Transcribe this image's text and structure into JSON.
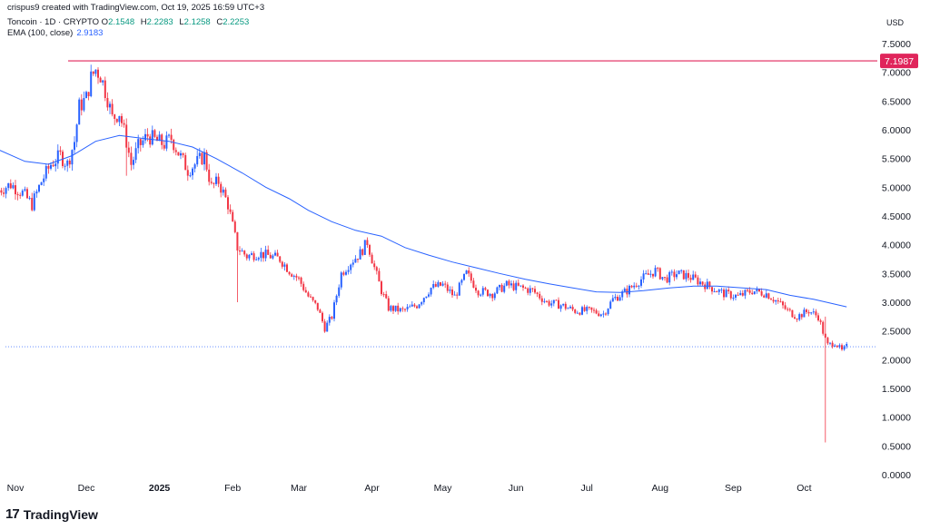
{
  "header": {
    "author_line": "crispus9 created with TradingView.com, Oct 19, 2025 16:59 UTC+3",
    "symbol": "Toncoin · 1D · CRYPTO",
    "ohlc": [
      {
        "k": "O",
        "v": "2.1548"
      },
      {
        "k": "H",
        "v": "2.2283"
      },
      {
        "k": "L",
        "v": "2.1258"
      },
      {
        "k": "C",
        "v": "2.2253"
      }
    ],
    "ema_label": "EMA (100, close)",
    "ema_value": "2.9183"
  },
  "currency": "USD",
  "logo_text": "TradingView",
  "colors": {
    "up": "#2962ff",
    "down": "#f23645",
    "ema": "#2962ff",
    "hline": "#e0255b",
    "price_line": "#2962ff"
  },
  "chart_data": {
    "type": "candlestick",
    "title": "Toncoin · 1D · CRYPTO",
    "ylabel": "USD",
    "ylim": [
      0,
      7.75
    ],
    "y_ticks": [
      "7.5000",
      "7.0000",
      "6.5000",
      "6.0000",
      "5.5000",
      "5.0000",
      "4.5000",
      "4.0000",
      "3.5000",
      "3.0000",
      "2.5000",
      "2.0000",
      "1.5000",
      "1.0000",
      "0.5000",
      "0.0000"
    ],
    "x_ticks": [
      {
        "label": "Nov",
        "date": "2024-11-01",
        "bold": false
      },
      {
        "label": "Dec",
        "date": "2024-12-01",
        "bold": false
      },
      {
        "label": "2025",
        "date": "2025-01-01",
        "bold": true
      },
      {
        "label": "Feb",
        "date": "2025-02-01",
        "bold": false
      },
      {
        "label": "Mar",
        "date": "2025-03-01",
        "bold": false
      },
      {
        "label": "Apr",
        "date": "2025-04-01",
        "bold": false
      },
      {
        "label": "May",
        "date": "2025-05-01",
        "bold": false
      },
      {
        "label": "Jun",
        "date": "2025-06-01",
        "bold": false
      },
      {
        "label": "Jul",
        "date": "2025-07-01",
        "bold": false
      },
      {
        "label": "Aug",
        "date": "2025-08-01",
        "bold": false
      },
      {
        "label": "Sep",
        "date": "2025-09-01",
        "bold": false
      },
      {
        "label": "Oct",
        "date": "2025-10-01",
        "bold": false
      }
    ],
    "horizontal_line": {
      "value": 7.1987,
      "label": "7.1987"
    },
    "last_price_line": 2.2253,
    "close_series": [
      [
        "2024-10-25",
        4.95
      ],
      [
        "2024-10-30",
        5.05
      ],
      [
        "2024-11-04",
        4.9
      ],
      [
        "2024-11-08",
        4.7
      ],
      [
        "2024-11-12",
        5.1
      ],
      [
        "2024-11-16",
        5.4
      ],
      [
        "2024-11-20",
        5.55
      ],
      [
        "2024-11-23",
        5.4
      ],
      [
        "2024-11-26",
        5.8
      ],
      [
        "2024-11-28",
        6.4
      ],
      [
        "2024-12-01",
        6.55
      ],
      [
        "2024-12-03",
        6.9
      ],
      [
        "2024-12-05",
        7.05
      ],
      [
        "2024-12-07",
        6.95
      ],
      [
        "2024-12-10",
        6.55
      ],
      [
        "2024-12-12",
        6.2
      ],
      [
        "2024-12-15",
        6.3
      ],
      [
        "2024-12-18",
        5.8
      ],
      [
        "2024-12-20",
        5.4
      ],
      [
        "2024-12-23",
        5.7
      ],
      [
        "2024-12-27",
        5.9
      ],
      [
        "2024-12-31",
        5.8
      ],
      [
        "2025-01-03",
        5.75
      ],
      [
        "2025-01-06",
        5.85
      ],
      [
        "2025-01-09",
        5.6
      ],
      [
        "2025-01-13",
        5.3
      ],
      [
        "2025-01-16",
        5.4
      ],
      [
        "2025-01-20",
        5.55
      ],
      [
        "2025-01-23",
        5.0
      ],
      [
        "2025-01-26",
        5.1
      ],
      [
        "2025-01-30",
        4.7
      ],
      [
        "2025-02-03",
        3.95
      ],
      [
        "2025-02-07",
        3.8
      ],
      [
        "2025-02-12",
        3.85
      ],
      [
        "2025-02-17",
        3.8
      ],
      [
        "2025-02-21",
        3.75
      ],
      [
        "2025-02-25",
        3.55
      ],
      [
        "2025-03-01",
        3.4
      ],
      [
        "2025-03-05",
        3.1
      ],
      [
        "2025-03-09",
        2.9
      ],
      [
        "2025-03-12",
        2.55
      ],
      [
        "2025-03-15",
        2.75
      ],
      [
        "2025-03-19",
        3.5
      ],
      [
        "2025-03-23",
        3.7
      ],
      [
        "2025-03-27",
        3.85
      ],
      [
        "2025-03-30",
        4.05
      ],
      [
        "2025-04-02",
        3.6
      ],
      [
        "2025-04-05",
        3.2
      ],
      [
        "2025-04-08",
        2.9
      ],
      [
        "2025-04-14",
        2.85
      ],
      [
        "2025-04-20",
        2.95
      ],
      [
        "2025-04-26",
        3.25
      ],
      [
        "2025-05-01",
        3.3
      ],
      [
        "2025-05-06",
        3.1
      ],
      [
        "2025-05-11",
        3.5
      ],
      [
        "2025-05-16",
        3.2
      ],
      [
        "2025-05-22",
        3.15
      ],
      [
        "2025-05-28",
        3.3
      ],
      [
        "2025-06-03",
        3.25
      ],
      [
        "2025-06-08",
        3.2
      ],
      [
        "2025-06-14",
        3.0
      ],
      [
        "2025-06-20",
        2.95
      ],
      [
        "2025-06-26",
        2.85
      ],
      [
        "2025-07-02",
        2.85
      ],
      [
        "2025-07-08",
        2.8
      ],
      [
        "2025-07-12",
        3.05
      ],
      [
        "2025-07-18",
        3.2
      ],
      [
        "2025-07-24",
        3.4
      ],
      [
        "2025-07-30",
        3.55
      ],
      [
        "2025-08-03",
        3.4
      ],
      [
        "2025-08-08",
        3.5
      ],
      [
        "2025-08-13",
        3.45
      ],
      [
        "2025-08-18",
        3.35
      ],
      [
        "2025-08-23",
        3.25
      ],
      [
        "2025-08-28",
        3.15
      ],
      [
        "2025-09-03",
        3.1
      ],
      [
        "2025-09-09",
        3.2
      ],
      [
        "2025-09-15",
        3.15
      ],
      [
        "2025-09-20",
        3.0
      ],
      [
        "2025-09-24",
        2.85
      ],
      [
        "2025-09-28",
        2.75
      ],
      [
        "2025-10-03",
        2.85
      ],
      [
        "2025-10-07",
        2.75
      ],
      [
        "2025-10-10",
        2.35
      ],
      [
        "2025-10-11",
        2.25
      ],
      [
        "2025-10-14",
        2.3
      ],
      [
        "2025-10-17",
        2.15
      ],
      [
        "2025-10-19",
        2.2253
      ]
    ],
    "ema_series": [
      [
        "2024-10-25",
        5.65
      ],
      [
        "2024-11-05",
        5.45
      ],
      [
        "2024-11-15",
        5.4
      ],
      [
        "2024-11-25",
        5.55
      ],
      [
        "2024-12-05",
        5.8
      ],
      [
        "2024-12-15",
        5.9
      ],
      [
        "2024-12-25",
        5.85
      ],
      [
        "2025-01-05",
        5.8
      ],
      [
        "2025-01-15",
        5.7
      ],
      [
        "2025-01-25",
        5.5
      ],
      [
        "2025-02-05",
        5.25
      ],
      [
        "2025-02-15",
        5.0
      ],
      [
        "2025-02-25",
        4.8
      ],
      [
        "2025-03-05",
        4.6
      ],
      [
        "2025-03-15",
        4.4
      ],
      [
        "2025-03-25",
        4.25
      ],
      [
        "2025-04-05",
        4.15
      ],
      [
        "2025-04-15",
        3.95
      ],
      [
        "2025-04-25",
        3.82
      ],
      [
        "2025-05-05",
        3.7
      ],
      [
        "2025-05-15",
        3.6
      ],
      [
        "2025-05-25",
        3.5
      ],
      [
        "2025-06-05",
        3.4
      ],
      [
        "2025-06-15",
        3.32
      ],
      [
        "2025-06-25",
        3.25
      ],
      [
        "2025-07-05",
        3.18
      ],
      [
        "2025-07-15",
        3.17
      ],
      [
        "2025-07-25",
        3.2
      ],
      [
        "2025-08-05",
        3.25
      ],
      [
        "2025-08-15",
        3.28
      ],
      [
        "2025-08-25",
        3.28
      ],
      [
        "2025-09-05",
        3.25
      ],
      [
        "2025-09-15",
        3.22
      ],
      [
        "2025-09-25",
        3.12
      ],
      [
        "2025-10-05",
        3.05
      ],
      [
        "2025-10-19",
        2.92
      ]
    ],
    "notable_wicks": [
      {
        "date": "2024-12-18",
        "low": 5.2
      },
      {
        "date": "2025-02-03",
        "low": 3.0
      },
      {
        "date": "2025-10-10",
        "low": 0.56,
        "high": 2.75
      }
    ]
  }
}
